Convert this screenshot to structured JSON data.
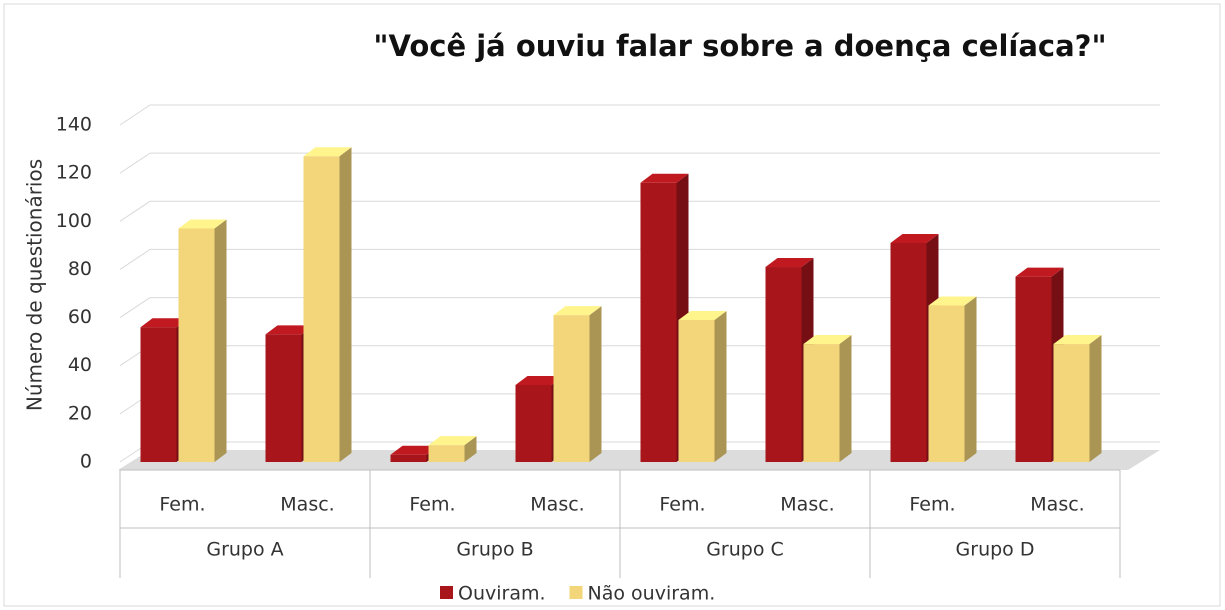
{
  "chart_data": {
    "type": "bar3d",
    "title": "\"Você já ouviu falar sobre a doença celíaca?\"",
    "y_label": "Número de questionários",
    "categories": [
      "Fem.",
      "Masc.",
      "Fem.",
      "Masc.",
      "Fem.",
      "Masc.",
      "Fem.",
      "Masc."
    ],
    "groups": [
      "Grupo A",
      "Grupo B",
      "Grupo C",
      "Grupo D"
    ],
    "series": [
      {
        "name": "Ouviram.",
        "color": "#a8161c",
        "values": [
          56,
          53,
          3,
          32,
          116,
          81,
          91,
          77
        ]
      },
      {
        "name": "Não ouviram.",
        "color": "#f3d57a",
        "values": [
          97,
          127,
          7,
          61,
          59,
          49,
          65,
          49
        ]
      }
    ],
    "ylim": [
      0,
      140
    ],
    "yticks": [
      0,
      20,
      40,
      60,
      80,
      100,
      120,
      140
    ],
    "grid": true,
    "legend": "bottom"
  }
}
